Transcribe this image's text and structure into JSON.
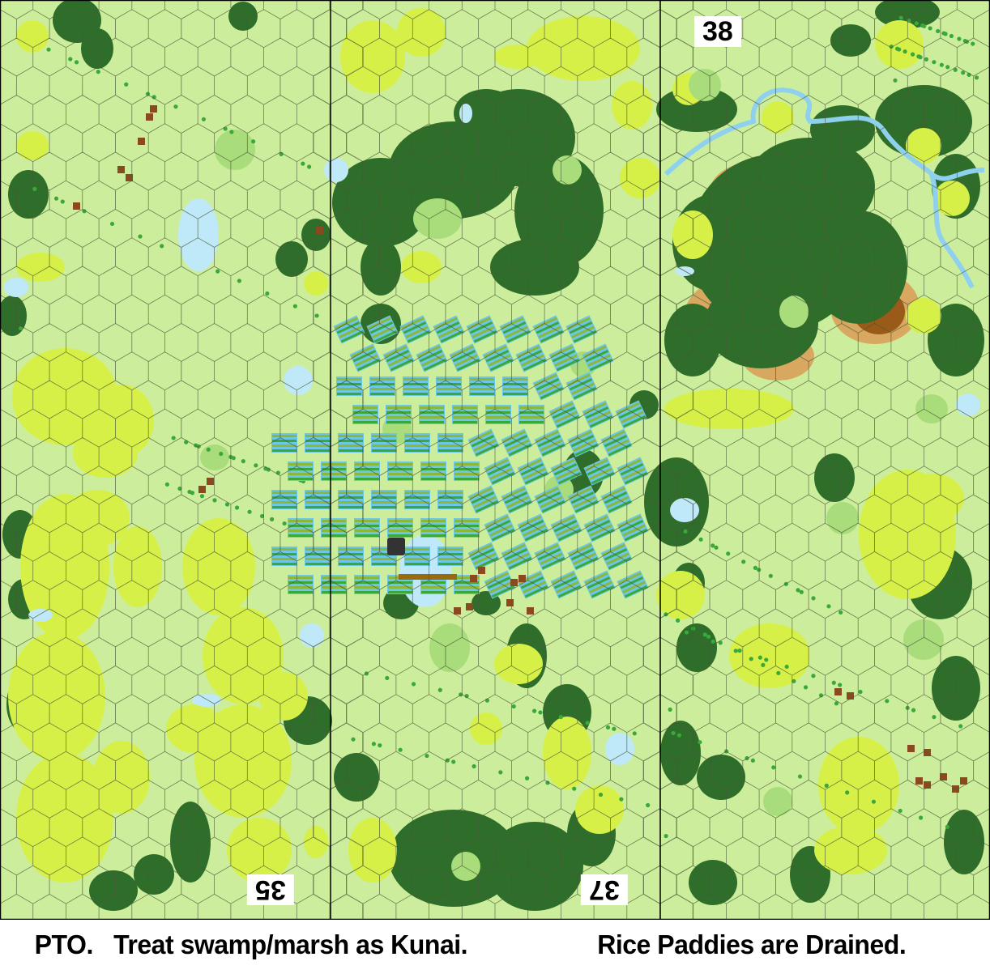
{
  "map": {
    "boards": [
      {
        "number": "35",
        "orientation": "upside-down"
      },
      {
        "number": "37",
        "orientation": "upside-down"
      },
      {
        "number": "38",
        "orientation": "upright"
      }
    ],
    "terrain_types": [
      "open-ground",
      "woods",
      "brush",
      "grain",
      "kunai",
      "orchard",
      "rice-paddy",
      "pond",
      "hill",
      "stream",
      "building",
      "pillbox",
      "bridge"
    ],
    "colors": {
      "open_ground": "#ccee9c",
      "woods": "#2f6d2a",
      "woods_dark": "#1f4e1c",
      "grain": "#d6f048",
      "brush": "#a9dc7a",
      "kunai": "#3aa83a",
      "paddy_water": "#6cc6e6",
      "paddy_crop": "#8cb83a",
      "pond": "#bfe8f8",
      "hill_light": "#d9a860",
      "hill_dark": "#9a5a18",
      "building": "#8a4a20",
      "hex_line": "#4a5a3a",
      "board_edge": "#000000"
    }
  },
  "caption": {
    "part1": "PTO.   Treat swamp/marsh as Kunai.",
    "part2": "Rice Paddies are Drained."
  }
}
